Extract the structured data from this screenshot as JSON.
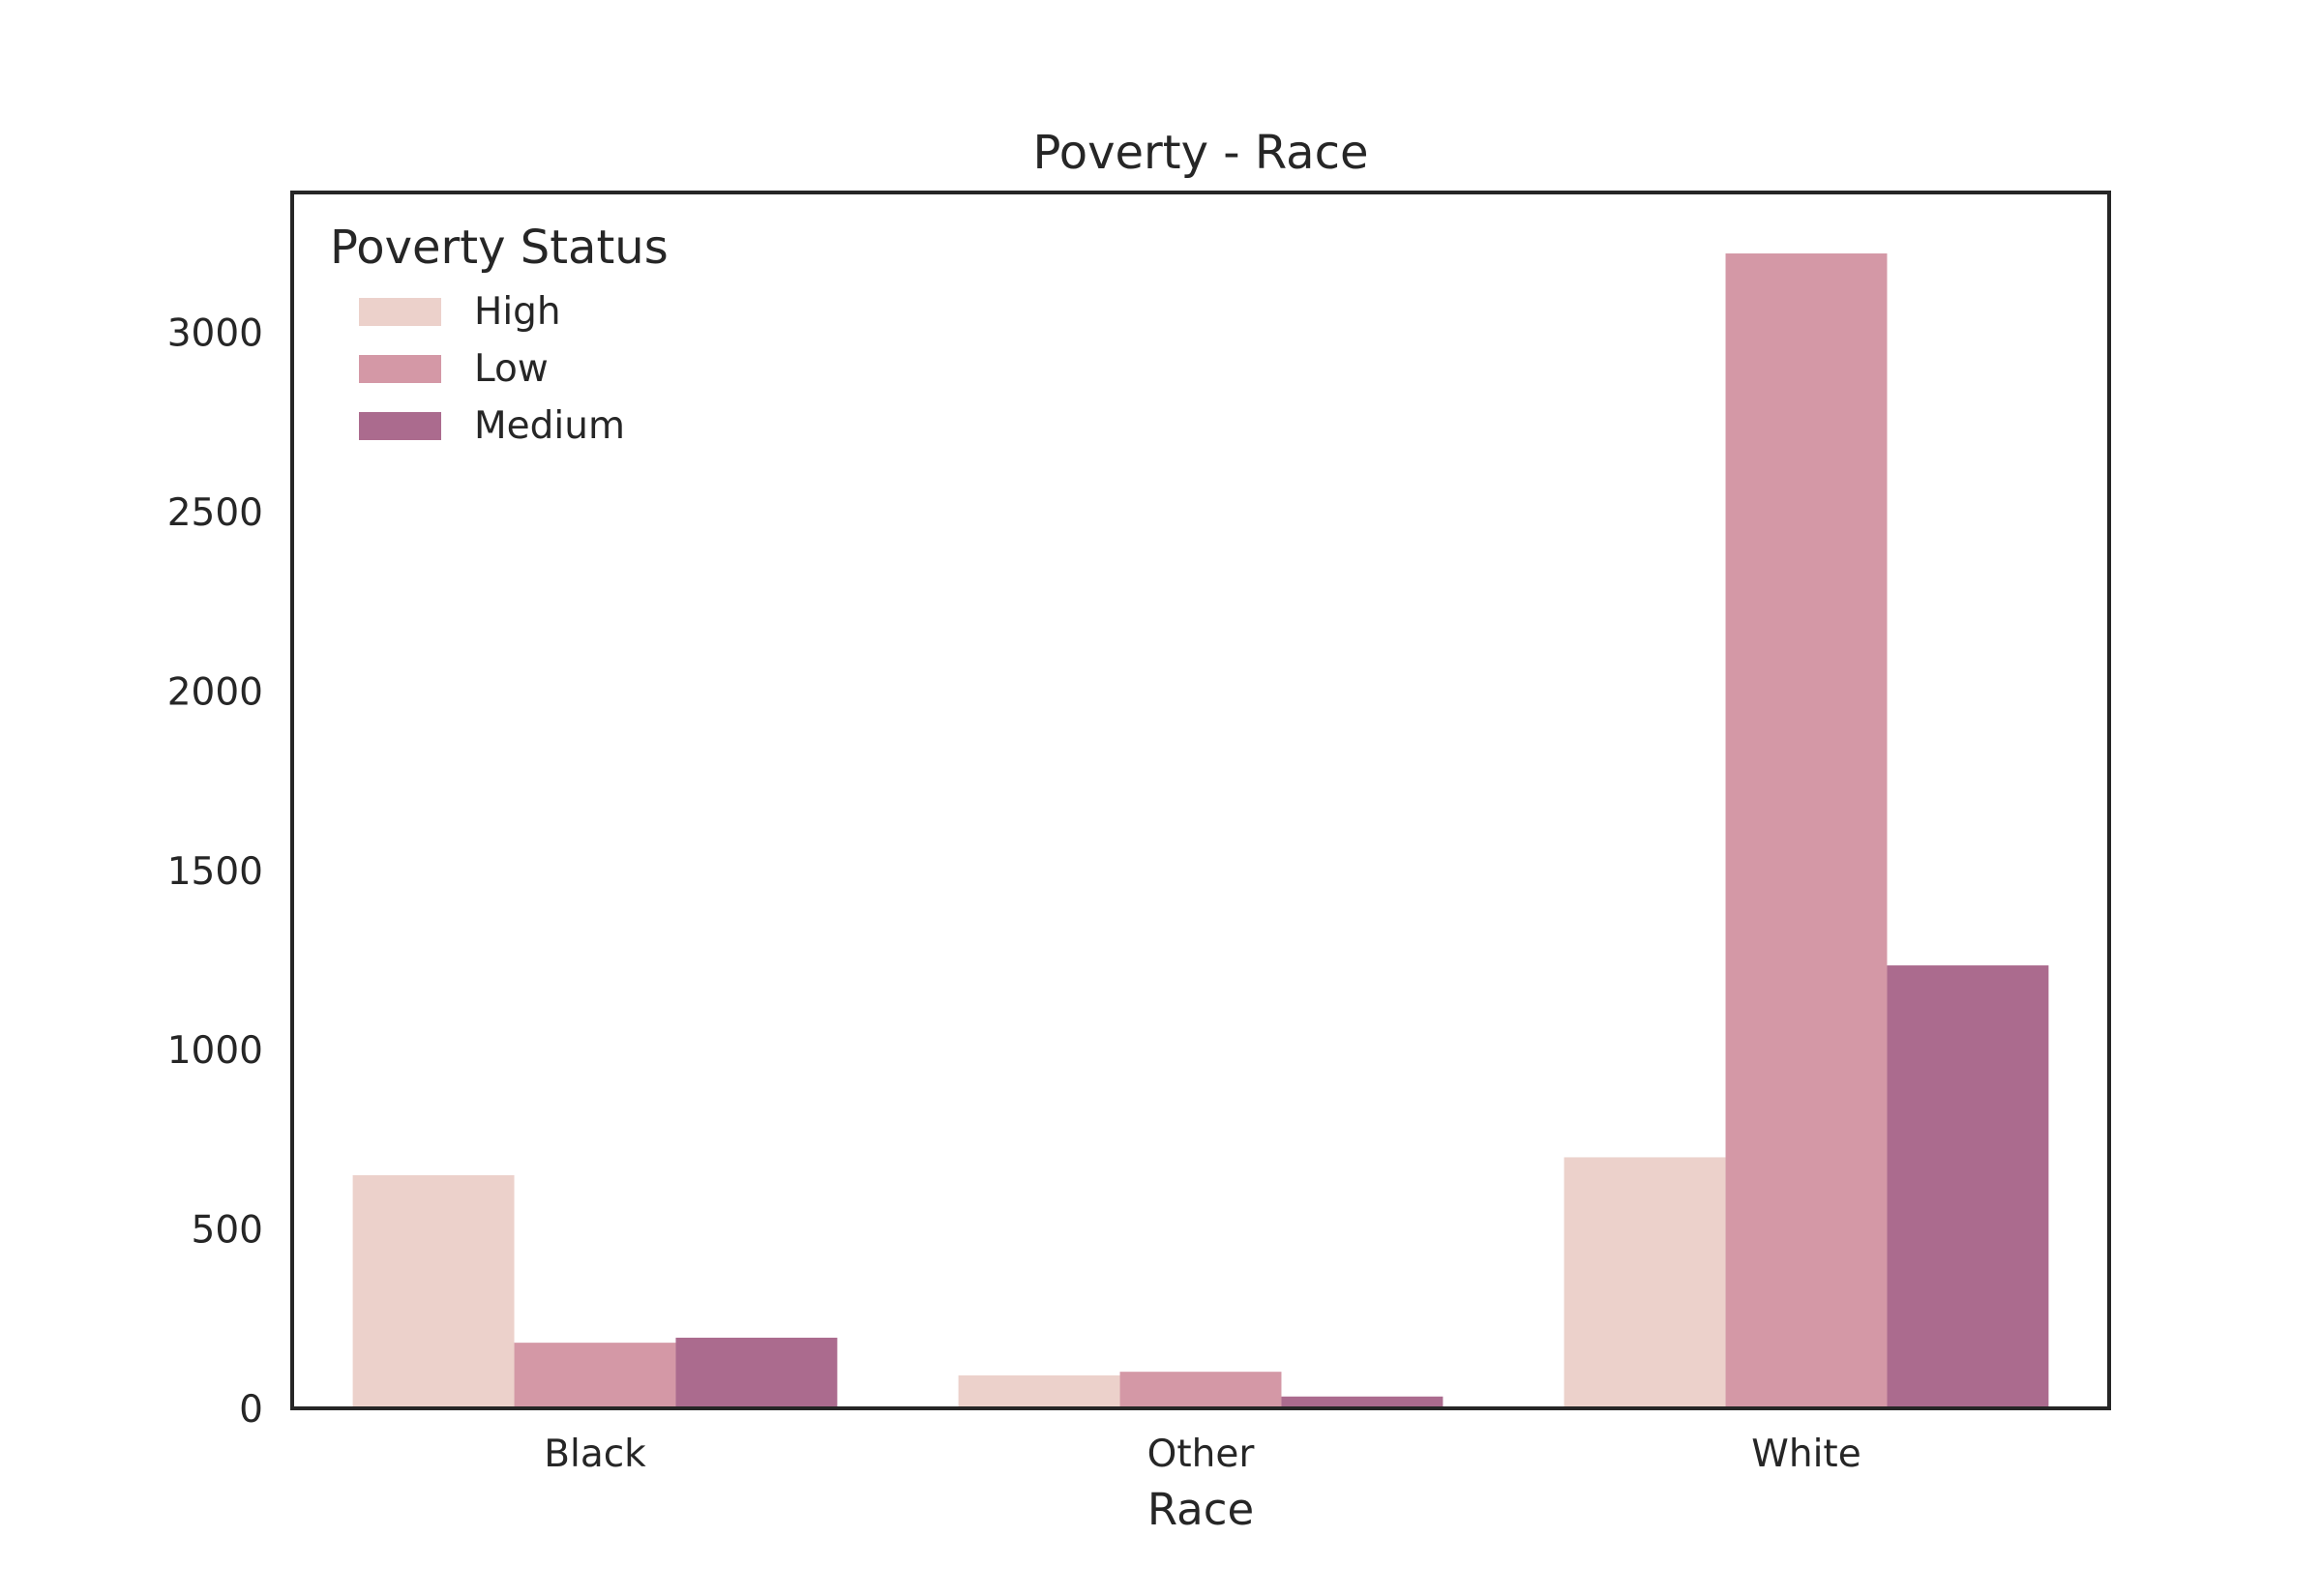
{
  "chart_data": {
    "type": "bar",
    "title": "Poverty - Race",
    "xlabel": "Race",
    "ylabel": "",
    "categories": [
      "Black",
      "Other",
      "White"
    ],
    "series": [
      {
        "name": "High",
        "values": [
          650,
          92,
          700
        ],
        "color": "#ecd1cb"
      },
      {
        "name": "Low",
        "values": [
          183,
          102,
          3220
        ],
        "color": "#d498a6"
      },
      {
        "name": "Medium",
        "values": [
          197,
          33,
          1235
        ],
        "color": "#ab6b8e"
      }
    ],
    "ylim": [
      0,
      3390
    ],
    "yticks": [
      0,
      500,
      1000,
      1500,
      2000,
      2500,
      3000
    ],
    "grid": false,
    "legend": {
      "title": "Poverty Status",
      "placement": "top-left"
    }
  }
}
